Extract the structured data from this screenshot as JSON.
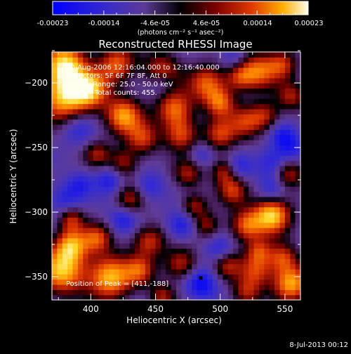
{
  "colorbar": {
    "tick_labels": [
      "-0.00023",
      "-0.00014",
      "-4.6e-05",
      "4.6e-05",
      "0.00014",
      "0.00023"
    ],
    "unit_label": "(photons cm⁻² s⁻¹ asec⁻²)",
    "range": [
      -0.00023,
      0.00023
    ]
  },
  "annotations": {
    "time_range": "20-Aug-2006 12:16:04.000 to 12:16:40.000",
    "detectors": "Detectors: 5F 6F 7F 8F, Att 0",
    "energy": "Energy Range: 25.0 - 50.0 keV",
    "method": "Clean    Total counts: 455.",
    "peak": "Position of Peak = [411,-188]"
  },
  "footer_timestamp": "8-Jul-2013 00:12",
  "chart_data": {
    "type": "heatmap",
    "title": "Reconstructed RHESSI Image",
    "xlabel": "Heliocentric X (arcsec)",
    "ylabel": "Heliocentric Y (arcsec)",
    "xlim": [
      370,
      562
    ],
    "ylim": [
      -368,
      -176
    ],
    "x_ticks": [
      400,
      450,
      500,
      550
    ],
    "y_ticks": [
      -200,
      -250,
      -300,
      -350
    ],
    "peak_position": [
      411,
      -188
    ],
    "blobs": [
      {
        "x": 380,
        "y": -185,
        "a": 0.95,
        "r": 12
      },
      {
        "x": 380,
        "y": -210,
        "a": 0.95,
        "r": 14
      },
      {
        "x": 400,
        "y": -205,
        "a": 0.75,
        "r": 10
      },
      {
        "x": 420,
        "y": -185,
        "a": 0.7,
        "r": 10
      },
      {
        "x": 455,
        "y": -190,
        "a": 0.6,
        "r": 10
      },
      {
        "x": 465,
        "y": -220,
        "a": 0.75,
        "r": 10
      },
      {
        "x": 470,
        "y": -240,
        "a": 0.6,
        "r": 9
      },
      {
        "x": 490,
        "y": -200,
        "a": 0.7,
        "r": 10
      },
      {
        "x": 500,
        "y": -215,
        "a": 0.65,
        "r": 8
      },
      {
        "x": 515,
        "y": -195,
        "a": 0.55,
        "r": 8
      },
      {
        "x": 530,
        "y": -190,
        "a": 0.7,
        "r": 10
      },
      {
        "x": 548,
        "y": -185,
        "a": 0.55,
        "r": 8
      },
      {
        "x": 425,
        "y": -225,
        "a": 0.85,
        "r": 10
      },
      {
        "x": 440,
        "y": -243,
        "a": 0.6,
        "r": 9
      },
      {
        "x": 425,
        "y": -262,
        "a": 0.5,
        "r": 8
      },
      {
        "x": 405,
        "y": -255,
        "a": 0.45,
        "r": 7
      },
      {
        "x": 475,
        "y": -270,
        "a": 0.5,
        "r": 8
      },
      {
        "x": 500,
        "y": -240,
        "a": 0.6,
        "r": 9
      },
      {
        "x": 520,
        "y": -230,
        "a": 0.55,
        "r": 9
      },
      {
        "x": 535,
        "y": -225,
        "a": 0.5,
        "r": 8
      },
      {
        "x": 555,
        "y": -210,
        "a": 0.5,
        "r": 8
      },
      {
        "x": 503,
        "y": -268,
        "a": 0.5,
        "r": 7
      },
      {
        "x": 540,
        "y": -302,
        "a": 1.0,
        "r": 10
      },
      {
        "x": 520,
        "y": -310,
        "a": 0.7,
        "r": 9
      },
      {
        "x": 510,
        "y": -283,
        "a": 0.55,
        "r": 8
      },
      {
        "x": 553,
        "y": -270,
        "a": 0.55,
        "r": 8
      },
      {
        "x": 490,
        "y": -310,
        "a": 0.45,
        "r": 7
      },
      {
        "x": 480,
        "y": -295,
        "a": 0.5,
        "r": 7
      },
      {
        "x": 385,
        "y": -305,
        "a": 0.55,
        "r": 7
      },
      {
        "x": 430,
        "y": -290,
        "a": 0.5,
        "r": 8
      },
      {
        "x": 378,
        "y": -345,
        "a": 0.95,
        "r": 13
      },
      {
        "x": 385,
        "y": -325,
        "a": 0.75,
        "r": 9
      },
      {
        "x": 415,
        "y": -350,
        "a": 0.95,
        "r": 12
      },
      {
        "x": 405,
        "y": -320,
        "a": 0.6,
        "r": 8
      },
      {
        "x": 445,
        "y": -322,
        "a": 0.6,
        "r": 9
      },
      {
        "x": 438,
        "y": -345,
        "a": 0.55,
        "r": 8
      },
      {
        "x": 470,
        "y": -340,
        "a": 0.6,
        "r": 9
      },
      {
        "x": 505,
        "y": -340,
        "a": 0.55,
        "r": 8
      },
      {
        "x": 528,
        "y": -345,
        "a": 0.6,
        "r": 9
      },
      {
        "x": 530,
        "y": -330,
        "a": 0.5,
        "r": 7
      },
      {
        "x": 555,
        "y": -355,
        "a": 0.9,
        "r": 10
      },
      {
        "x": 548,
        "y": -335,
        "a": 0.6,
        "r": 8
      },
      {
        "x": 520,
        "y": -362,
        "a": 0.5,
        "r": 8
      },
      {
        "x": 455,
        "y": -365,
        "a": 0.5,
        "r": 7
      },
      {
        "x": 390,
        "y": -235,
        "a": -0.35,
        "r": 9
      },
      {
        "x": 380,
        "y": -290,
        "a": -0.35,
        "r": 9
      },
      {
        "x": 415,
        "y": -275,
        "a": -0.4,
        "r": 8
      },
      {
        "x": 445,
        "y": -280,
        "a": -0.35,
        "r": 8
      },
      {
        "x": 470,
        "y": -310,
        "a": -0.45,
        "r": 8
      },
      {
        "x": 485,
        "y": -355,
        "a": -0.55,
        "r": 9
      },
      {
        "x": 500,
        "y": -330,
        "a": -0.4,
        "r": 8
      },
      {
        "x": 425,
        "y": -305,
        "a": -0.4,
        "r": 8
      },
      {
        "x": 540,
        "y": -262,
        "a": -0.4,
        "r": 9
      },
      {
        "x": 555,
        "y": -250,
        "a": -0.35,
        "r": 8
      },
      {
        "x": 515,
        "y": -265,
        "a": -0.35,
        "r": 7
      },
      {
        "x": 485,
        "y": -255,
        "a": -0.3,
        "r": 7
      },
      {
        "x": 455,
        "y": -200,
        "a": -0.3,
        "r": 7
      },
      {
        "x": 510,
        "y": -180,
        "a": -0.3,
        "r": 7
      },
      {
        "x": 548,
        "y": -240,
        "a": -0.35,
        "r": 7
      },
      {
        "x": 540,
        "y": -283,
        "a": -0.3,
        "r": 7
      },
      {
        "x": 392,
        "y": -278,
        "a": -0.3,
        "r": 7
      }
    ]
  }
}
